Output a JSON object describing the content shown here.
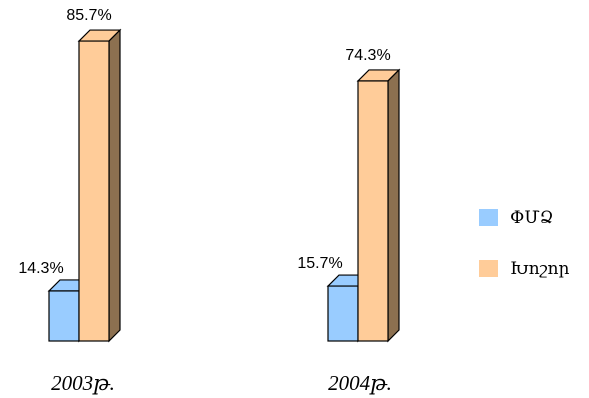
{
  "chart_data": {
    "type": "bar",
    "style": "3d-column",
    "categories": [
      "2003թ.",
      "2004թ."
    ],
    "series": [
      {
        "name": "ՓՄՁ",
        "values": [
          14.3,
          15.7
        ],
        "labels": [
          "14.3%",
          "15.7%"
        ],
        "color": "#99ccff",
        "side_color": "#5c7a99"
      },
      {
        "name": "Խոշոր",
        "values": [
          85.7,
          74.3
        ],
        "labels": [
          "85.7%",
          "74.3%"
        ],
        "color": "#ffcc99",
        "side_color": "#8c7050"
      }
    ],
    "unit": "%",
    "ylim": [
      0,
      100
    ],
    "grid": false,
    "legend_position": "right",
    "outline_color": "#000000"
  }
}
